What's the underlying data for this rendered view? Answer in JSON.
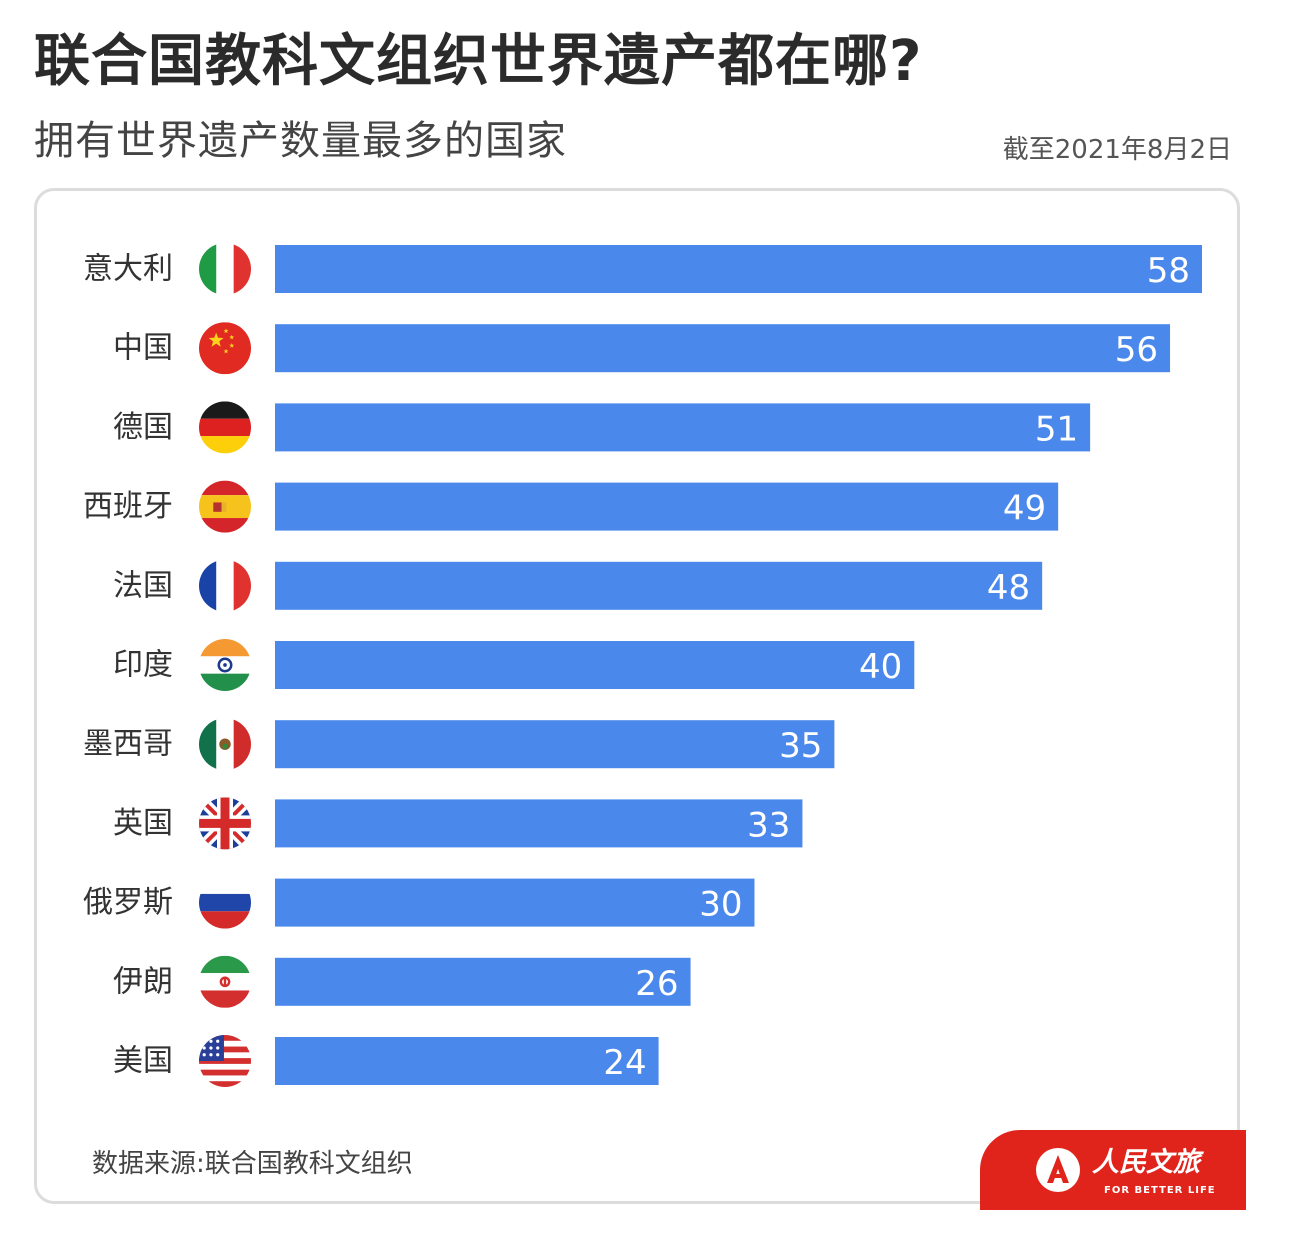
{
  "header": {
    "title": "联合国教科文组织世界遗产都在哪?",
    "subtitle": "拥有世界遗产数量最多的国家",
    "date": "截至2021年8月2日"
  },
  "footer": {
    "source": "数据来源:联合国教科文组织",
    "brand_name": "人民文旅",
    "brand_tagline": "FOR BETTER LIFE"
  },
  "colors": {
    "bar": "#4a88ec",
    "value_label": "#ffffff",
    "category_label": "#333333",
    "brand": "#e0241c"
  },
  "chart_data": {
    "type": "bar",
    "orientation": "horizontal",
    "categories": [
      "意大利",
      "中国",
      "德国",
      "西班牙",
      "法国",
      "印度",
      "墨西哥",
      "英国",
      "俄罗斯",
      "伊朗",
      "美国"
    ],
    "values": [
      58,
      56,
      51,
      49,
      48,
      40,
      35,
      33,
      30,
      26,
      24
    ],
    "flags": [
      "italy-flag-icon",
      "china-flag-icon",
      "germany-flag-icon",
      "spain-flag-icon",
      "france-flag-icon",
      "india-flag-icon",
      "mexico-flag-icon",
      "uk-flag-icon",
      "russia-flag-icon",
      "iran-flag-icon",
      "usa-flag-icon"
    ],
    "title": "",
    "xlabel": "",
    "ylabel": "",
    "xlim": [
      0,
      58
    ],
    "grid": false,
    "data_labels": "inside-end"
  }
}
